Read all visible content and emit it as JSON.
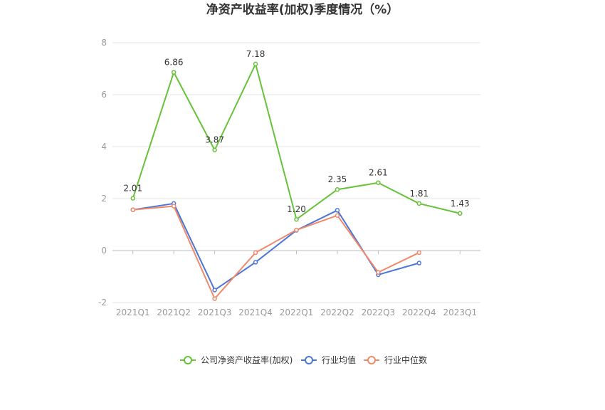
{
  "chart_data": {
    "type": "line",
    "title": "净资产收益率(加权)季度情况（%）",
    "categories": [
      "2021Q1",
      "2021Q2",
      "2021Q3",
      "2021Q4",
      "2022Q1",
      "2022Q2",
      "2022Q3",
      "2022Q4",
      "2023Q1"
    ],
    "ylim": [
      -2,
      8
    ],
    "yticks": [
      -2,
      0,
      2,
      4,
      6,
      8
    ],
    "grid": true,
    "legend_position": "bottom",
    "series": [
      {
        "name": "公司净资产收益率(加权)",
        "color": "#67c23a",
        "values": [
          2.01,
          6.86,
          3.87,
          7.18,
          1.2,
          2.35,
          2.61,
          1.81,
          1.43
        ],
        "labels": [
          "2.01",
          "6.86",
          "3.87",
          "7.18",
          "1.20",
          "2.35",
          "2.61",
          "1.81",
          "1.43"
        ]
      },
      {
        "name": "行业均值",
        "color": "#4a75d9",
        "values": [
          1.57,
          1.81,
          -1.52,
          -0.45,
          0.78,
          1.55,
          -0.93,
          -0.48,
          null
        ]
      },
      {
        "name": "行业中位数",
        "color": "#f0896a",
        "values": [
          1.57,
          1.71,
          -1.85,
          -0.08,
          0.79,
          1.35,
          -0.84,
          -0.08,
          null
        ]
      }
    ]
  }
}
